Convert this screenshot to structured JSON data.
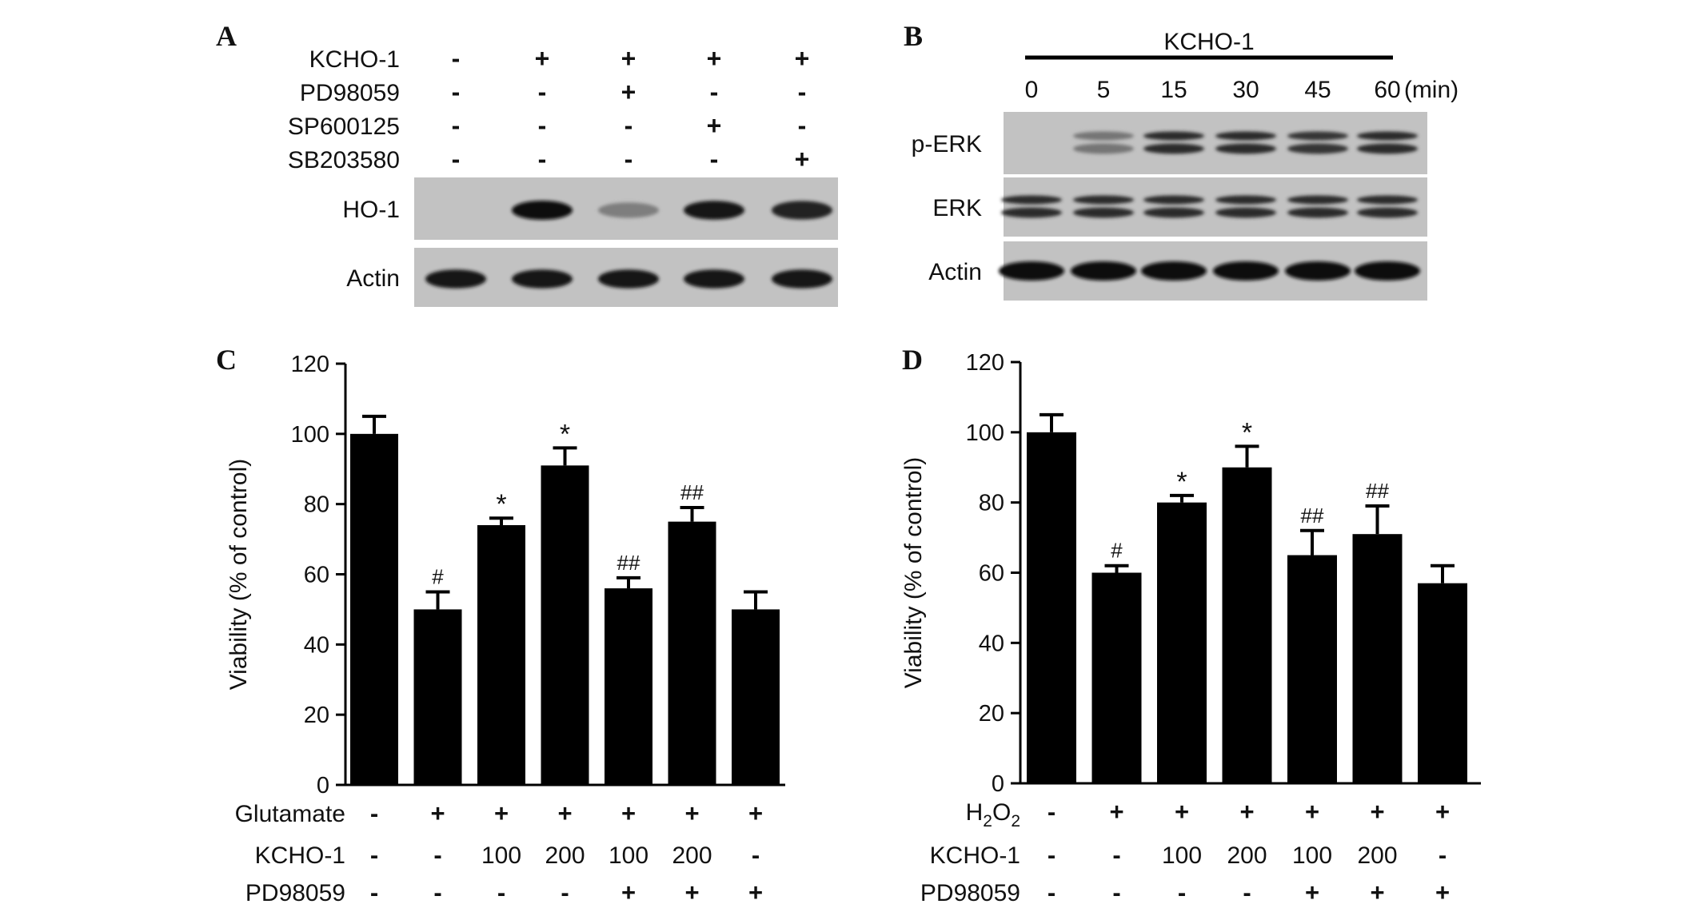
{
  "panels": {
    "A": {
      "letter": "A",
      "treatments": [
        {
          "label": "KCHO-1",
          "signs": [
            "-",
            "+",
            "+",
            "+",
            "+"
          ]
        },
        {
          "label": "PD98059",
          "signs": [
            "-",
            "-",
            "+",
            "-",
            "-"
          ]
        },
        {
          "label": "SP600125",
          "signs": [
            "-",
            "-",
            "-",
            "+",
            "-"
          ]
        },
        {
          "label": "SB203580",
          "signs": [
            "-",
            "-",
            "-",
            "-",
            "+"
          ]
        }
      ],
      "blots": [
        {
          "label": "HO-1",
          "band_intensity": [
            0.0,
            1.0,
            0.4,
            0.95,
            0.9
          ]
        },
        {
          "label": "Actin",
          "band_intensity": [
            0.95,
            0.95,
            0.95,
            0.95,
            0.95
          ]
        }
      ]
    },
    "B": {
      "letter": "B",
      "treatment_label": "KCHO-1",
      "times": [
        "0",
        "5",
        "15",
        "30",
        "45",
        "60"
      ],
      "time_unit": "(min)",
      "blots": [
        {
          "label": "p-ERK",
          "band_intensity": [
            0.0,
            0.45,
            0.85,
            0.85,
            0.8,
            0.85
          ]
        },
        {
          "label": "ERK",
          "band_intensity": [
            0.85,
            0.85,
            0.85,
            0.85,
            0.85,
            0.85
          ]
        },
        {
          "label": "Actin",
          "band_intensity": [
            1.0,
            1.0,
            1.0,
            1.0,
            1.0,
            1.0
          ]
        }
      ]
    }
  },
  "chart_data": [
    {
      "panel": "C",
      "type": "bar",
      "ylabel": "Viability  (% of control)",
      "ylim": [
        0,
        120
      ],
      "yticks": [
        "0",
        "20",
        "40",
        "60",
        "80",
        "100",
        "120"
      ],
      "values": [
        100,
        50,
        74,
        91,
        56,
        75,
        50
      ],
      "errors": [
        5,
        5,
        2,
        5,
        3,
        4,
        5
      ],
      "annotations": [
        "",
        "#",
        "*",
        "*",
        "##",
        "##",
        ""
      ],
      "treatments": [
        {
          "label": "Glutamate",
          "values": [
            "-",
            "+",
            "+",
            "+",
            "+",
            "+",
            "+"
          ]
        },
        {
          "label": "KCHO-1",
          "values": [
            "-",
            "-",
            "100",
            "200",
            "100",
            "200",
            "-"
          ]
        },
        {
          "label": "PD98059",
          "values": [
            "-",
            "-",
            "-",
            "-",
            "+",
            "+",
            "+"
          ]
        }
      ]
    },
    {
      "panel": "D",
      "type": "bar",
      "ylabel": "Viability  (% of control)",
      "ylim": [
        0,
        120
      ],
      "yticks": [
        "0",
        "20",
        "40",
        "60",
        "80",
        "100",
        "120"
      ],
      "values": [
        100,
        60,
        80,
        90,
        65,
        71,
        57
      ],
      "errors": [
        5,
        2,
        2,
        6,
        7,
        8,
        5
      ],
      "annotations": [
        "",
        "#",
        "*",
        "*",
        "##",
        "##",
        ""
      ],
      "treatments": [
        {
          "label": "H",
          "subscript": "2",
          "label_end": "O",
          "subscript_end": "2",
          "values": [
            "-",
            "+",
            "+",
            "+",
            "+",
            "+",
            "+"
          ]
        },
        {
          "label": "KCHO-1",
          "values": [
            "-",
            "-",
            "100",
            "200",
            "100",
            "200",
            "-"
          ]
        },
        {
          "label": "PD98059",
          "values": [
            "-",
            "-",
            "-",
            "-",
            "+",
            "+",
            "+"
          ]
        }
      ]
    }
  ]
}
